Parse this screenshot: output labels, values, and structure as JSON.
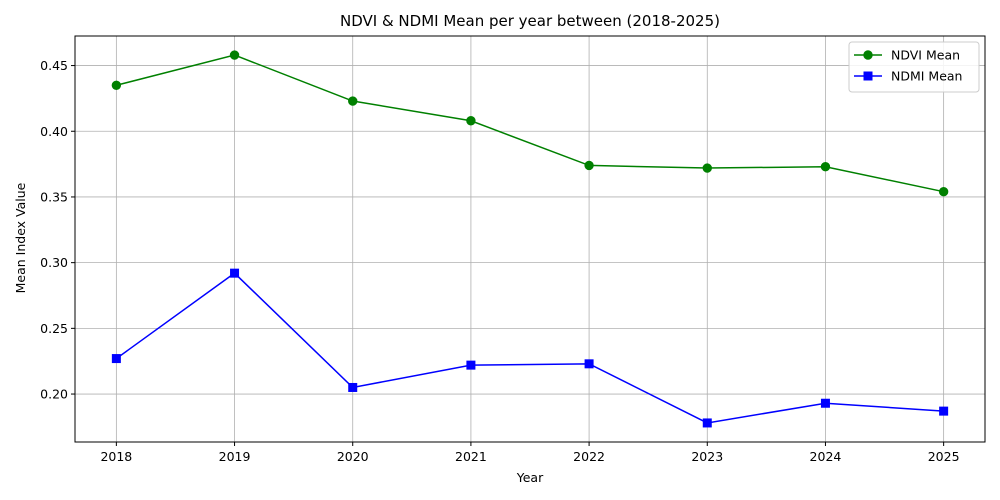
{
  "chart_data": {
    "type": "line",
    "title": "NDVI & NDMI Mean per year between (2018-2025)",
    "xlabel": "Year",
    "ylabel": "Mean Index Value",
    "x": [
      2018,
      2019,
      2020,
      2021,
      2022,
      2023,
      2024,
      2025
    ],
    "x_tick_labels": [
      "2018",
      "2019",
      "2020",
      "2021",
      "2022",
      "2023",
      "2024",
      "2025"
    ],
    "y_ticks": [
      0.2,
      0.25,
      0.3,
      0.35,
      0.4,
      0.45
    ],
    "y_tick_labels": [
      "0.20",
      "0.25",
      "0.30",
      "0.35",
      "0.40",
      "0.45"
    ],
    "xlim": [
      2017.65,
      2025.35
    ],
    "ylim": [
      0.1635,
      0.4725
    ],
    "grid": true,
    "legend_position": "top-right",
    "series": [
      {
        "name": "NDVI Mean",
        "color": "#008000",
        "marker": "circle",
        "values": [
          0.435,
          0.458,
          0.423,
          0.408,
          0.374,
          0.372,
          0.373,
          0.354
        ]
      },
      {
        "name": "NDMI Mean",
        "color": "#0000ff",
        "marker": "square",
        "values": [
          0.227,
          0.292,
          0.205,
          0.222,
          0.223,
          0.178,
          0.193,
          0.187
        ]
      }
    ]
  }
}
